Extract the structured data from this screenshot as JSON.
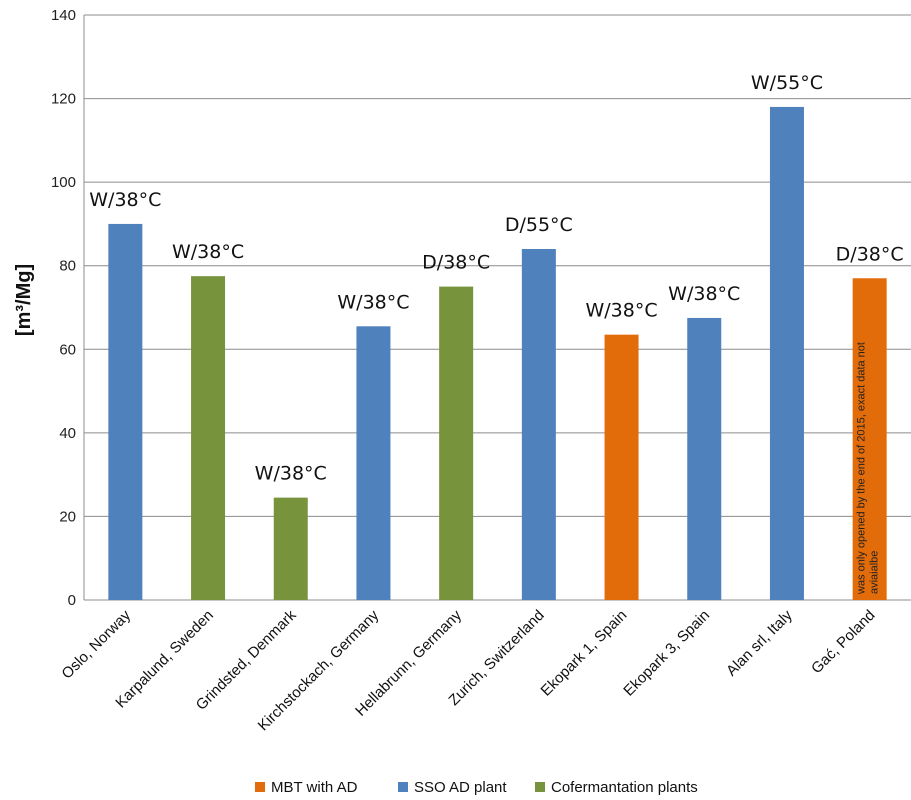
{
  "chart_data": {
    "type": "bar",
    "ylabel": "[m³/Mg]",
    "ylim": [
      0,
      140
    ],
    "yticks": [
      "0",
      "20",
      "40",
      "60",
      "80",
      "100",
      "120",
      "140"
    ],
    "grid": true,
    "legend_position": "bottom",
    "legend": [
      {
        "name": "MBT with AD",
        "color": "#E36C0A"
      },
      {
        "name": "SSO AD plant",
        "color": "#4F81BD"
      },
      {
        "name": "Cofermantation plants",
        "color": "#77933C"
      }
    ],
    "categories": [
      "Oslo, Norway",
      "Karpalund, Sweden",
      "Grindsted, Denmark",
      "Kirchstockach, Germany",
      "Hellabrunn, Germany",
      "Zurich, Switzerland",
      "Ekopark 1, Spain",
      "Ekopark 3, Spain",
      "Alan srl, Italy",
      "Gać, Poland"
    ],
    "values": [
      90,
      77.5,
      24.5,
      65.5,
      75,
      84,
      63.5,
      67.5,
      118,
      77
    ],
    "bar_groups": [
      "SSO AD plant",
      "Cofermantation plants",
      "Cofermantation plants",
      "SSO AD plant",
      "Cofermantation plants",
      "SSO AD plant",
      "MBT with AD",
      "SSO AD plant",
      "SSO AD plant",
      "MBT with AD"
    ],
    "data_labels": [
      "W/38°C",
      "W/38°C",
      "W/38°C",
      "W/38°C",
      "D/38°C",
      "D/55°C",
      "W/38°C",
      "W/38°C",
      "W/55°C",
      "D/38°C"
    ],
    "annotation": {
      "category": "Gać, Poland",
      "lines": [
        "was only opened by the end of 2015, exact data not",
        "aviaialbe"
      ]
    }
  }
}
